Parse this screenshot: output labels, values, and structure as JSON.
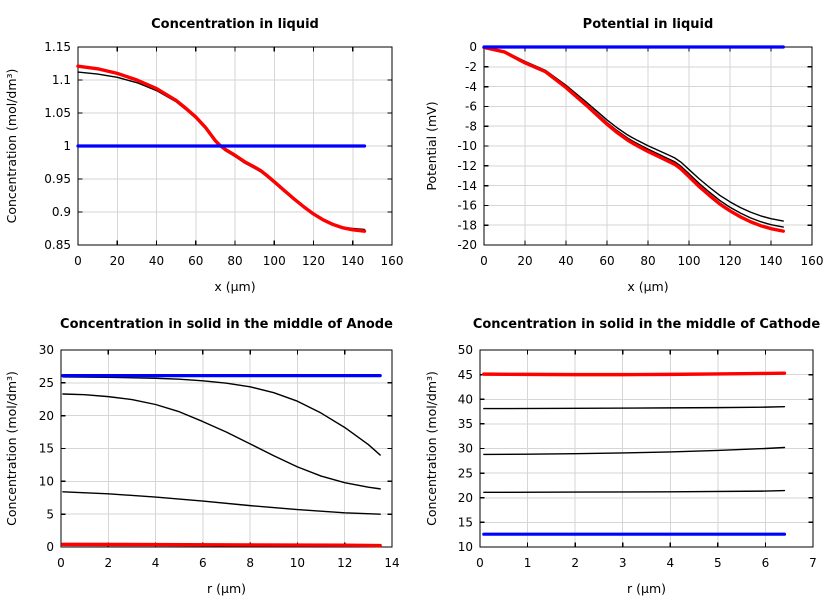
{
  "page": {
    "background": "#ffffff"
  },
  "palette": {
    "red": "#ff0000",
    "blue": "#0000ff",
    "black": "#000000",
    "grid": "#d6d6d6",
    "axis": "#000000"
  },
  "chart_data": [
    {
      "type": "line",
      "title": "Concentration in liquid",
      "xlabel": "x (μm)",
      "ylabel": "Concentration (mol/dm³)",
      "xlim": [
        0,
        160
      ],
      "ylim": [
        0.85,
        1.15
      ],
      "xticks": [
        0,
        20,
        40,
        60,
        80,
        100,
        120,
        140,
        160
      ],
      "xtick_labels": [
        "0",
        "20",
        "40",
        "60",
        "80",
        "100",
        "120",
        "140",
        "160"
      ],
      "yticks": [
        0.85,
        0.9,
        0.95,
        1,
        1.05,
        1.1,
        1.15
      ],
      "ytick_labels": [
        "0.85",
        "0.9",
        "0.95",
        "1",
        "1.05",
        "1.1",
        "1.15"
      ],
      "grid": true,
      "legend": "none",
      "series": [
        {
          "name": "black-curve-early",
          "color": "black",
          "width": 1.4,
          "x": [
            0,
            10,
            20,
            30,
            40,
            50,
            55,
            60,
            65,
            70,
            72,
            75,
            80,
            85,
            90,
            93,
            96,
            100,
            105,
            110,
            115,
            120,
            125,
            130,
            135,
            140,
            146
          ],
          "y": [
            1.112,
            1.109,
            1.104,
            1.096,
            1.084,
            1.067,
            1.055,
            1.042,
            1.026,
            1.006,
            1.0,
            0.993,
            0.984,
            0.974,
            0.966,
            0.961,
            0.954,
            0.944,
            0.931,
            0.919,
            0.907,
            0.896,
            0.888,
            0.882,
            0.877,
            0.875,
            0.8735
          ]
        },
        {
          "name": "black-curve-late",
          "color": "black",
          "width": 1.4,
          "x": [
            0,
            10,
            20,
            30,
            40,
            50,
            55,
            60,
            65,
            70,
            72,
            75,
            80,
            85,
            90,
            93,
            96,
            100,
            105,
            110,
            115,
            120,
            125,
            130,
            135,
            140,
            146
          ],
          "y": [
            1.121,
            1.117,
            1.11,
            1.1,
            1.087,
            1.069,
            1.057,
            1.044,
            1.028,
            1.008,
            1.002,
            0.995,
            0.986,
            0.976,
            0.968,
            0.963,
            0.956,
            0.946,
            0.933,
            0.92,
            0.908,
            0.897,
            0.888,
            0.881,
            0.876,
            0.873,
            0.871
          ]
        },
        {
          "name": "red-curve",
          "color": "red",
          "width": 3.4,
          "x": [
            0,
            10,
            20,
            30,
            40,
            50,
            55,
            60,
            65,
            70,
            72,
            75,
            80,
            85,
            90,
            93,
            96,
            100,
            105,
            110,
            115,
            120,
            125,
            130,
            135,
            140,
            146
          ],
          "y": [
            1.121,
            1.117,
            1.11,
            1.1,
            1.087,
            1.069,
            1.057,
            1.044,
            1.028,
            1.008,
            1.002,
            0.995,
            0.986,
            0.976,
            0.968,
            0.963,
            0.956,
            0.946,
            0.933,
            0.92,
            0.908,
            0.897,
            0.888,
            0.881,
            0.876,
            0.873,
            0.871
          ]
        },
        {
          "name": "blue-initial-level",
          "color": "blue",
          "width": 3.2,
          "x": [
            0,
            146
          ],
          "y": [
            1,
            1
          ]
        }
      ]
    },
    {
      "type": "line",
      "title": "Potential in liquid",
      "xlabel": "x (μm)",
      "ylabel": "Potential (mV)",
      "xlim": [
        0,
        160
      ],
      "ylim": [
        -20,
        0
      ],
      "xticks": [
        0,
        20,
        40,
        60,
        80,
        100,
        120,
        140,
        160
      ],
      "xtick_labels": [
        "0",
        "20",
        "40",
        "60",
        "80",
        "100",
        "120",
        "140",
        "160"
      ],
      "yticks": [
        0,
        -2,
        -4,
        -6,
        -8,
        -10,
        -12,
        -14,
        -16,
        -18,
        -20
      ],
      "ytick_labels": [
        "0",
        "-2",
        "-4",
        "-6",
        "-8",
        "-10",
        "-12",
        "-14",
        "-16",
        "-18",
        "-20"
      ],
      "grid": true,
      "legend": "none",
      "series": [
        {
          "name": "black-curve-upper",
          "color": "black",
          "width": 1.4,
          "x": [
            0,
            10,
            20,
            30,
            40,
            50,
            55,
            60,
            65,
            70,
            72,
            75,
            80,
            85,
            90,
            93,
            96,
            100,
            105,
            110,
            115,
            120,
            125,
            130,
            135,
            140,
            146
          ],
          "y": [
            -0.05,
            -0.43,
            -1.45,
            -2.36,
            -3.87,
            -5.58,
            -6.47,
            -7.37,
            -8.17,
            -8.88,
            -9.12,
            -9.45,
            -9.97,
            -10.44,
            -10.91,
            -11.2,
            -11.62,
            -12.38,
            -13.32,
            -14.18,
            -14.98,
            -15.64,
            -16.21,
            -16.68,
            -17.06,
            -17.34,
            -17.58
          ]
        },
        {
          "name": "black-curve-middle",
          "color": "black",
          "width": 1.4,
          "x": [
            0,
            10,
            20,
            30,
            40,
            50,
            55,
            60,
            65,
            70,
            72,
            75,
            80,
            85,
            90,
            93,
            96,
            100,
            105,
            110,
            115,
            120,
            125,
            130,
            135,
            140,
            146
          ],
          "y": [
            -0.05,
            -0.44,
            -1.52,
            -2.45,
            -4.01,
            -5.77,
            -6.7,
            -7.63,
            -8.46,
            -9.19,
            -9.44,
            -9.78,
            -10.32,
            -10.81,
            -11.3,
            -11.59,
            -12.03,
            -12.81,
            -13.79,
            -14.67,
            -15.5,
            -16.19,
            -16.77,
            -17.26,
            -17.65,
            -17.95,
            -18.19
          ]
        },
        {
          "name": "red-curve",
          "color": "red",
          "width": 3.4,
          "x": [
            0,
            10,
            20,
            30,
            40,
            50,
            55,
            60,
            65,
            70,
            72,
            75,
            80,
            85,
            90,
            93,
            96,
            100,
            105,
            110,
            115,
            120,
            125,
            130,
            135,
            140,
            146
          ],
          "y": [
            -0.05,
            -0.5,
            -1.6,
            -2.5,
            -4.1,
            -5.9,
            -6.85,
            -7.8,
            -8.65,
            -9.4,
            -9.65,
            -10.0,
            -10.55,
            -11.05,
            -11.55,
            -11.85,
            -12.3,
            -13.1,
            -14.1,
            -15.0,
            -15.85,
            -16.55,
            -17.15,
            -17.65,
            -18.05,
            -18.35,
            -18.6
          ]
        },
        {
          "name": "blue-initial-level",
          "color": "blue",
          "width": 3.2,
          "x": [
            0,
            146
          ],
          "y": [
            0,
            0
          ]
        }
      ]
    },
    {
      "type": "line",
      "title": "Concentration in solid in the middle of Anode",
      "xlabel": "r (μm)",
      "ylabel": "Concentration (mol/dm³)",
      "xlim": [
        0,
        14
      ],
      "ylim": [
        0,
        30
      ],
      "xticks": [
        0,
        2,
        4,
        6,
        8,
        10,
        12,
        14
      ],
      "xtick_labels": [
        "0",
        "2",
        "4",
        "6",
        "8",
        "10",
        "12",
        "14"
      ],
      "yticks": [
        0,
        5,
        10,
        15,
        20,
        25,
        30
      ],
      "ytick_labels": [
        "0",
        "5",
        "10",
        "15",
        "20",
        "25",
        "30"
      ],
      "grid": true,
      "legend": "none",
      "series": [
        {
          "name": "black-curve-1",
          "color": "black",
          "width": 1.4,
          "x": [
            0.08,
            2,
            4,
            5,
            6,
            7,
            8,
            9,
            10,
            11,
            12,
            13,
            13.5
          ],
          "y": [
            25.9,
            25.85,
            25.7,
            25.55,
            25.3,
            24.95,
            24.4,
            23.5,
            22.2,
            20.4,
            18.2,
            15.6,
            14.0
          ]
        },
        {
          "name": "black-curve-2",
          "color": "black",
          "width": 1.4,
          "x": [
            0.08,
            1,
            2,
            3,
            4,
            5,
            6,
            7,
            8,
            9,
            10,
            11,
            12,
            13,
            13.5
          ],
          "y": [
            23.3,
            23.2,
            22.9,
            22.45,
            21.7,
            20.6,
            19.1,
            17.5,
            15.7,
            13.9,
            12.2,
            10.8,
            9.8,
            9.1,
            8.85
          ]
        },
        {
          "name": "black-curve-3",
          "color": "black",
          "width": 1.4,
          "x": [
            0.08,
            2,
            4,
            6,
            8,
            10,
            12,
            13.5
          ],
          "y": [
            8.4,
            8.1,
            7.6,
            7.0,
            6.3,
            5.7,
            5.2,
            5.0
          ]
        },
        {
          "name": "red-curve",
          "color": "red",
          "width": 3.4,
          "x": [
            0.08,
            4,
            8,
            12,
            13.5
          ],
          "y": [
            0.4,
            0.37,
            0.32,
            0.27,
            0.22
          ]
        },
        {
          "name": "blue-max-level",
          "color": "blue",
          "width": 3.2,
          "x": [
            0.08,
            13.5
          ],
          "y": [
            26.1,
            26.1
          ]
        }
      ]
    },
    {
      "type": "line",
      "title": "Concentration in solid in the middle of Cathode",
      "xlabel": "r (μm)",
      "ylabel": "Concentration (mol/dm³)",
      "xlim": [
        0,
        7
      ],
      "ylim": [
        10,
        50
      ],
      "xticks": [
        0,
        1,
        2,
        3,
        4,
        5,
        6,
        7
      ],
      "xtick_labels": [
        "0",
        "1",
        "2",
        "3",
        "4",
        "5",
        "6",
        "7"
      ],
      "yticks": [
        10,
        15,
        20,
        25,
        30,
        35,
        40,
        45,
        50
      ],
      "ytick_labels": [
        "10",
        "15",
        "20",
        "25",
        "30",
        "35",
        "40",
        "45",
        "50"
      ],
      "grid": true,
      "legend": "none",
      "series": [
        {
          "name": "black-curve-1",
          "color": "black",
          "width": 1.4,
          "x": [
            0.08,
            2,
            4,
            5,
            6,
            6.4
          ],
          "y": [
            38.1,
            38.15,
            38.25,
            38.3,
            38.4,
            38.5
          ]
        },
        {
          "name": "black-curve-2",
          "color": "black",
          "width": 1.4,
          "x": [
            0.08,
            1,
            2,
            3,
            4,
            5,
            6,
            6.4
          ],
          "y": [
            28.8,
            28.85,
            28.95,
            29.1,
            29.3,
            29.6,
            30.0,
            30.2
          ]
        },
        {
          "name": "black-curve-3",
          "color": "black",
          "width": 1.4,
          "x": [
            0.08,
            2,
            4,
            6,
            6.4
          ],
          "y": [
            21.1,
            21.15,
            21.2,
            21.35,
            21.45
          ]
        },
        {
          "name": "blue-min-level",
          "color": "blue",
          "width": 3.2,
          "x": [
            0.08,
            6.4
          ],
          "y": [
            12.6,
            12.6
          ]
        },
        {
          "name": "red-max-level",
          "color": "red",
          "width": 3.4,
          "x": [
            0.08,
            1,
            2,
            3,
            4,
            5,
            6,
            6.4
          ],
          "y": [
            45.1,
            45.05,
            45.0,
            45.0,
            45.05,
            45.15,
            45.25,
            45.3
          ]
        }
      ]
    }
  ]
}
